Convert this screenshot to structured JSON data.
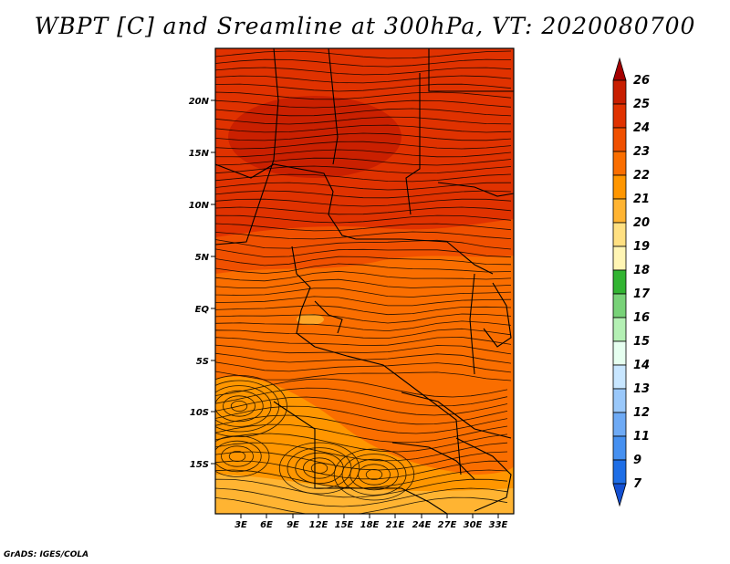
{
  "title": "WBPT [C] and Sreamline at 300hPa, VT: 2020080700",
  "footer": "GrADS: IGES/COLA",
  "map": {
    "lat_ticks": [
      "20N",
      "15N",
      "10N",
      "5N",
      "EQ",
      "5S",
      "10S",
      "15S"
    ],
    "lon_ticks": [
      "3E",
      "6E",
      "9E",
      "12E",
      "15E",
      "18E",
      "21E",
      "24E",
      "27E",
      "30E",
      "33E"
    ]
  },
  "colorbar": {
    "labels": [
      "26",
      "25",
      "24",
      "23",
      "22",
      "21",
      "20",
      "19",
      "18",
      "17",
      "16",
      "15",
      "14",
      "13",
      "12",
      "11",
      "9",
      "7"
    ],
    "colors": [
      "#a50000",
      "#c81e00",
      "#e03200",
      "#f05000",
      "#fa6e00",
      "#ff9600",
      "#ffb432",
      "#ffe082",
      "#fff5b4",
      "#32b432",
      "#78d278",
      "#b4f0b4",
      "#e6fff0",
      "#c8e6ff",
      "#9ac8fa",
      "#6eaaf5",
      "#4690f0",
      "#1e6ee6",
      "#1450d2"
    ]
  },
  "colors": {
    "field_dominant": "#f05000",
    "field_north_max": "#c81e00",
    "field_south_warm": "#ff9600"
  }
}
